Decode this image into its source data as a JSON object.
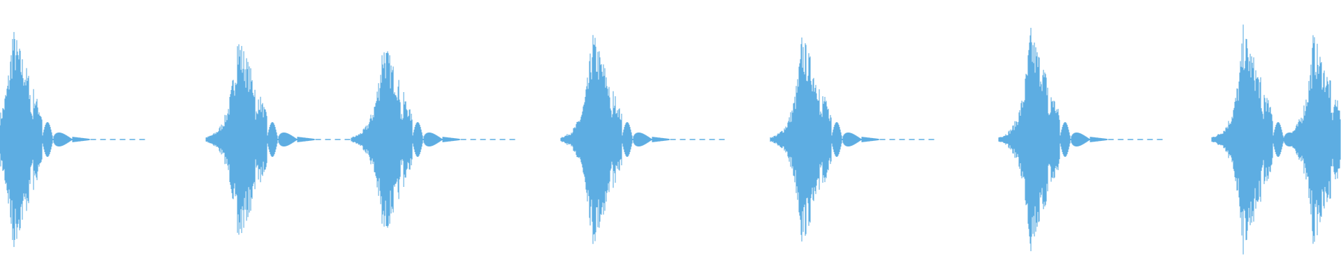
{
  "waveform": {
    "color": "#5dade2",
    "background": "#ffffff",
    "beat_count": 8
  }
}
